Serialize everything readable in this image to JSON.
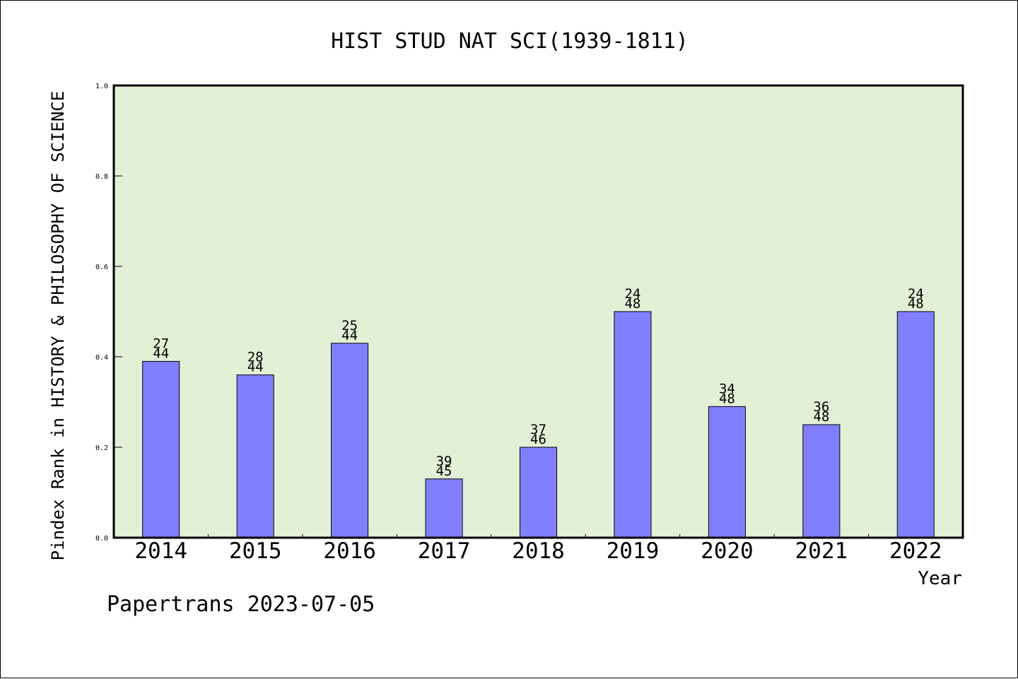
{
  "chart_data": {
    "type": "bar",
    "title": "HIST STUD NAT SCI(1939-1811)",
    "xlabel": "Year",
    "ylabel": "Pindex Rank in HISTORY & PHILOSOPHY OF SCIENCE",
    "ylim": [
      0,
      1.0
    ],
    "yticks": [
      "0.0",
      "0.2",
      "0.4",
      "0.6",
      "0.8",
      "1.0"
    ],
    "categories": [
      "2014",
      "2015",
      "2016",
      "2017",
      "2018",
      "2019",
      "2020",
      "2021",
      "2022"
    ],
    "values": [
      0.39,
      0.36,
      0.43,
      0.13,
      0.2,
      0.5,
      0.29,
      0.25,
      0.5
    ],
    "label_top": [
      "27",
      "28",
      "25",
      "39",
      "37",
      "24",
      "34",
      "36",
      "24"
    ],
    "label_bottom": [
      "44",
      "44",
      "44",
      "45",
      "46",
      "48",
      "48",
      "48",
      "48"
    ],
    "grid": false,
    "legend": "none"
  },
  "footer": "Papertrans 2023-07-05",
  "colors": {
    "plot_background": "#e2f0d6",
    "bar_fill": "#8080ff",
    "bar_stroke": "#000000"
  }
}
